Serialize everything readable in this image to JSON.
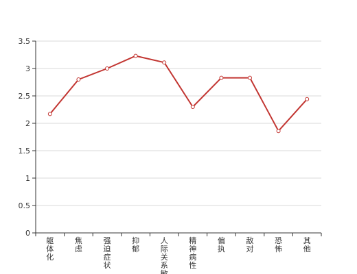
{
  "chart_data": {
    "type": "line",
    "categories": [
      "躯体化",
      "焦虑",
      "强迫症状",
      "抑郁",
      "人际关系敏感",
      "精神病性",
      "偏执",
      "敌对",
      "恐怖",
      "其他"
    ],
    "series": [
      {
        "values": [
          2.17,
          2.8,
          3.0,
          3.23,
          3.11,
          2.3,
          2.83,
          2.83,
          1.86,
          2.44
        ]
      }
    ],
    "y_ticks": [
      "0",
      "0.5",
      "1",
      "1.5",
      "2",
      "2.5",
      "3",
      "3.5"
    ],
    "ylim": [
      0,
      3.5
    ],
    "grid": "horizontal",
    "line_color": "#c23531",
    "grid_color": "#d9d9d9",
    "axis_color": "#333333"
  }
}
